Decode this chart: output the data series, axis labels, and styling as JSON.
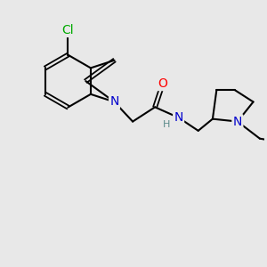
{
  "background_color": "#e8e8e8",
  "bond_color": "#000000",
  "bond_width": 1.5,
  "atom_colors": {
    "N": "#0000cc",
    "O": "#ff0000",
    "Cl": "#00aa00",
    "C": "#000000",
    "H": "#5a8a8a"
  },
  "font_size": 9,
  "fig_size": [
    3.0,
    3.0
  ],
  "dpi": 100
}
